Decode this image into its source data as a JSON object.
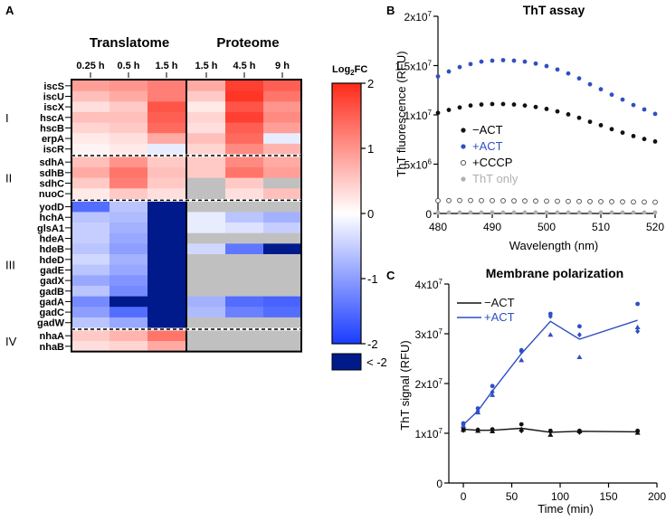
{
  "panels": [
    {
      "letter": "A"
    },
    {
      "letter": "B"
    },
    {
      "letter": "C"
    }
  ],
  "colors": {
    "positive": "#ff2a1a",
    "negative": "#1a3cff",
    "below_min": "#001a8c",
    "missing": "#c0c0c0",
    "act_blue": "#2f4fc4",
    "neg_act_black": "#111111",
    "cccp_gray": "#444444",
    "tht_only_gray": "#b0b0b0"
  },
  "chart_data": [
    {
      "type": "heatmap",
      "panel": "A",
      "groups": [
        {
          "title": "Translatome",
          "columns": [
            "0.25 h",
            "0.5 h",
            "1.5 h"
          ]
        },
        {
          "title": "Proteome",
          "columns": [
            "1.5 h",
            "4.5 h",
            "9 h"
          ]
        }
      ],
      "colorbar": {
        "title": "Log2FC",
        "title_main": "Log",
        "title_sub": "2",
        "title_suffix": "FC",
        "range": [
          -2,
          2
        ],
        "ticks": [
          "2",
          "1",
          "0",
          "-1",
          "-2"
        ],
        "below_label": "< -2"
      },
      "clusters": [
        {
          "label": "I",
          "genes": [
            "iscS",
            "iscU",
            "iscX",
            "hscA",
            "hscB",
            "erpA",
            "iscR"
          ]
        },
        {
          "label": "II",
          "genes": [
            "sdhA",
            "sdhB",
            "sdhC",
            "nuoC"
          ]
        },
        {
          "label": "III",
          "genes": [
            "yodD",
            "hchA",
            "glsA1",
            "hdeA",
            "hdeB",
            "hdeD",
            "gadE",
            "gadX",
            "gadB",
            "gadA",
            "gadC",
            "gadW"
          ]
        },
        {
          "label": "IV",
          "genes": [
            "nhaA",
            "nhaB"
          ]
        }
      ],
      "values": [
        [
          0.9,
          1.0,
          1.2,
          0.8,
          1.8,
          1.5
        ],
        [
          0.6,
          0.8,
          1.2,
          0.5,
          1.9,
          1.3
        ],
        [
          0.3,
          0.5,
          1.6,
          0.2,
          1.6,
          1.0
        ],
        [
          0.6,
          0.6,
          1.5,
          0.4,
          1.8,
          1.1
        ],
        [
          0.4,
          0.5,
          1.4,
          0.3,
          1.5,
          0.9
        ],
        [
          0.2,
          0.3,
          0.8,
          0.6,
          1.4,
          -0.2
        ],
        [
          0.1,
          0.2,
          -0.2,
          0.4,
          1.1,
          0.7
        ],
        [
          0.6,
          1.0,
          0.5,
          0.5,
          1.1,
          0.8
        ],
        [
          0.8,
          1.3,
          0.6,
          0.5,
          1.3,
          0.9
        ],
        [
          0.5,
          1.2,
          0.5,
          null,
          0.5,
          null
        ],
        [
          0.2,
          0.5,
          0.3,
          null,
          0.3,
          0.6
        ],
        [
          -1.5,
          -0.6,
          -3,
          null,
          null,
          null
        ],
        [
          -0.6,
          -0.7,
          -3,
          -0.2,
          -0.6,
          -0.8
        ],
        [
          -0.5,
          -0.8,
          -3,
          -0.2,
          -0.3,
          -0.5
        ],
        [
          -0.5,
          -0.9,
          -3,
          null,
          null,
          null
        ],
        [
          -0.6,
          -1.0,
          -3,
          -0.4,
          -1.4,
          -3
        ],
        [
          -0.4,
          -0.8,
          -3,
          null,
          null,
          null
        ],
        [
          -0.6,
          -0.9,
          -3,
          null,
          null,
          null
        ],
        [
          -0.9,
          -1.1,
          -3,
          null,
          null,
          null
        ],
        [
          -0.6,
          -1.2,
          -3,
          null,
          null,
          null
        ],
        [
          -1.2,
          -2.5,
          -3,
          -0.8,
          -1.5,
          -1.6
        ],
        [
          -1.0,
          -1.5,
          -3,
          -0.7,
          -1.3,
          -1.5
        ],
        [
          -0.6,
          -0.9,
          -3,
          null,
          null,
          null
        ],
        [
          0.5,
          0.7,
          1.3,
          null,
          null,
          null
        ],
        [
          0.3,
          0.4,
          0.8,
          null,
          null,
          null
        ]
      ]
    },
    {
      "type": "scatter",
      "panel": "B",
      "title": "ThT assay",
      "xlabel": "Wavelength (nm)",
      "ylabel": "ThT fluorescence (RFU)",
      "xlim": [
        480,
        520
      ],
      "ylim": [
        0,
        20000000
      ],
      "xticks": [
        "480",
        "490",
        "500",
        "510",
        "520"
      ],
      "yticks": [
        {
          "value": 0,
          "label": "0",
          "exp": ""
        },
        {
          "value": 5000000,
          "label": "5x10",
          "exp": "6"
        },
        {
          "value": 10000000,
          "label": "1x10",
          "exp": "7"
        },
        {
          "value": 15000000,
          "label": "1.5x10",
          "exp": "7"
        },
        {
          "value": 20000000,
          "label": "2x10",
          "exp": "7"
        }
      ],
      "x": [
        480,
        482,
        484,
        486,
        488,
        490,
        492,
        494,
        496,
        498,
        500,
        502,
        504,
        506,
        508,
        510,
        512,
        514,
        516,
        518,
        520
      ],
      "series": [
        {
          "name": "−ACT",
          "color": "#111111",
          "filled": true,
          "values": [
            10200000,
            10500000,
            10750000,
            10950000,
            11050000,
            11100000,
            11100000,
            11050000,
            10950000,
            10800000,
            10600000,
            10350000,
            10050000,
            9700000,
            9300000,
            8950000,
            8550000,
            8200000,
            7850000,
            7550000,
            7300000
          ]
        },
        {
          "name": "+ACT",
          "color": "#2f4fc4",
          "filled": true,
          "values": [
            13900000,
            14400000,
            14850000,
            15150000,
            15400000,
            15500000,
            15550000,
            15500000,
            15400000,
            15200000,
            14950000,
            14600000,
            14200000,
            13700000,
            13100000,
            12600000,
            12050000,
            11550000,
            11000000,
            10550000,
            10100000
          ]
        },
        {
          "name": "+CCCP",
          "color": "#444444",
          "filled": false,
          "values": [
            1300000,
            1310000,
            1320000,
            1320000,
            1310000,
            1300000,
            1290000,
            1280000,
            1270000,
            1260000,
            1250000,
            1240000,
            1230000,
            1220000,
            1210000,
            1200000,
            1190000,
            1180000,
            1170000,
            1160000,
            1150000
          ]
        },
        {
          "name": "ThT only",
          "color": "#b0b0b0",
          "filled": true,
          "values": [
            100000,
            100000,
            100000,
            100000,
            100000,
            100000,
            100000,
            100000,
            100000,
            100000,
            100000,
            100000,
            100000,
            100000,
            100000,
            100000,
            100000,
            100000,
            100000,
            100000,
            100000
          ]
        }
      ],
      "legend": "left-center"
    },
    {
      "type": "line",
      "panel": "C",
      "title": "Membrane polarization",
      "xlabel": "Time (min)",
      "ylabel": "ThT signal (RFU)",
      "xlim": [
        -15,
        200
      ],
      "ylim": [
        0,
        40000000
      ],
      "xticks": [
        "0",
        "50",
        "100",
        "150",
        "200"
      ],
      "yticks": [
        {
          "value": 0,
          "label": "0",
          "exp": ""
        },
        {
          "value": 10000000,
          "label": "1x10",
          "exp": "7"
        },
        {
          "value": 20000000,
          "label": "2x10",
          "exp": "7"
        },
        {
          "value": 30000000,
          "label": "3x10",
          "exp": "7"
        },
        {
          "value": 40000000,
          "label": "4x10",
          "exp": "7"
        }
      ],
      "x": [
        0,
        15,
        30,
        60,
        90,
        120,
        180
      ],
      "series": [
        {
          "name": "−ACT",
          "color": "#111111",
          "mean": [
            10800000,
            10600000,
            10600000,
            11000000,
            10200000,
            10400000,
            10300000
          ],
          "replicates": [
            [
              11000000,
              10700000,
              10600000
            ],
            [
              10700000,
              10500000,
              10600000
            ],
            [
              10800000,
              10400000,
              10600000
            ],
            [
              11800000,
              10800000,
              10500000
            ],
            [
              10500000,
              9700000,
              10300000
            ],
            [
              10500000,
              10400000,
              10200000
            ],
            [
              10500000,
              10100000,
              10300000
            ]
          ]
        },
        {
          "name": "+ACT",
          "color": "#2f4fc4",
          "mean": [
            11700000,
            14500000,
            18500000,
            26000000,
            32500000,
            28900000,
            32700000
          ],
          "replicates": [
            [
              12000000,
              11500000,
              11700000
            ],
            [
              15000000,
              14200000,
              14400000
            ],
            [
              19500000,
              17700000,
              18300000
            ],
            [
              26700000,
              24700000,
              26400000
            ],
            [
              34000000,
              29800000,
              33500000
            ],
            [
              31500000,
              25300000,
              29800000
            ],
            [
              36000000,
              31300000,
              30500000
            ]
          ]
        }
      ],
      "legend": "top-left"
    }
  ]
}
